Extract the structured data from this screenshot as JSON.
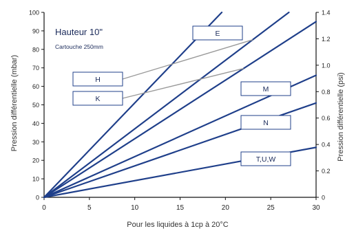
{
  "chart_data": {
    "type": "line",
    "panel_title": "Hauteur 10\"",
    "panel_subtitle": "Cartouche 250mm",
    "xlabel": "Pour les liquides à 1cp à 20°C",
    "ylabel_left": "Pression différentielle (mbar)",
    "ylabel_right": "Pression différentielle (psi)",
    "xlim": [
      0,
      30
    ],
    "ylim_left": [
      0,
      100
    ],
    "ylim_right": [
      0,
      1.4
    ],
    "x_ticks": [
      "0",
      "5",
      "10",
      "15",
      "20",
      "25",
      "30"
    ],
    "y_ticks_left": [
      "0",
      "10",
      "20",
      "30",
      "40",
      "50",
      "60",
      "70",
      "80",
      "90",
      "100"
    ],
    "y_ticks_right": [
      "0",
      "0.2",
      "0.4",
      "0.6",
      "0.8",
      "1.0",
      "1.2",
      "1.4"
    ],
    "grid": false,
    "series": [
      {
        "name": "E",
        "x": [
          0,
          19.6
        ],
        "y": [
          0,
          100
        ]
      },
      {
        "name": "H",
        "x": [
          0,
          27
        ],
        "y": [
          0,
          100
        ]
      },
      {
        "name": "K",
        "x": [
          0,
          30
        ],
        "y": [
          0,
          95
        ]
      },
      {
        "name": "M",
        "x": [
          0,
          30
        ],
        "y": [
          0,
          66
        ]
      },
      {
        "name": "N",
        "x": [
          0,
          30
        ],
        "y": [
          0,
          51
        ]
      },
      {
        "name": "T,U,W",
        "x": [
          0,
          30
        ],
        "y": [
          0,
          27
        ]
      }
    ],
    "labels": [
      {
        "text": "E",
        "series": "E"
      },
      {
        "text": "H",
        "series": "H"
      },
      {
        "text": "K",
        "series": "K"
      },
      {
        "text": "M",
        "series": "M"
      },
      {
        "text": "N",
        "series": "N"
      },
      {
        "text": "T,U,W",
        "series": "T,U,W"
      }
    ],
    "colors": {
      "line": "#1f3f8a",
      "axis": "#111111",
      "leader": "#9a9a9a",
      "label_border": "#1f3f8a"
    }
  }
}
